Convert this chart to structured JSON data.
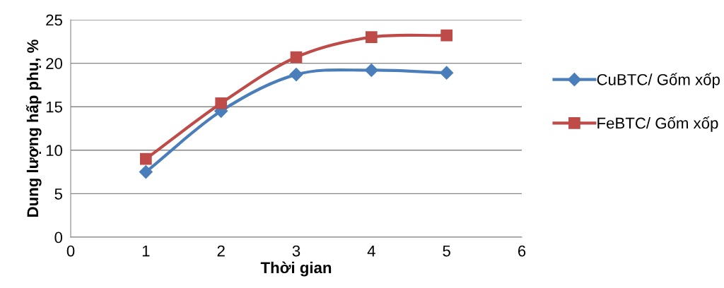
{
  "chart_data": {
    "type": "line",
    "xlabel": "Thời gian",
    "ylabel": "Dung lượng hấp phụ, %",
    "x": [
      1,
      2,
      3,
      4,
      5
    ],
    "series": [
      {
        "name": "CuBTC/ Gốm xốp",
        "color": "#4a7ebb",
        "marker": "diamond",
        "values": [
          7.5,
          14.5,
          18.7,
          19.2,
          18.9
        ]
      },
      {
        "name": "FeBTC/ Gốm xốp",
        "color": "#be4b48",
        "marker": "square",
        "values": [
          9.0,
          15.4,
          20.7,
          23.0,
          23.2
        ]
      }
    ],
    "xlim": [
      0,
      6
    ],
    "xticks": [
      0,
      1,
      2,
      3,
      4,
      5,
      6
    ],
    "ylim": [
      0,
      25
    ],
    "yticks": [
      0,
      5,
      10,
      15,
      20,
      25
    ],
    "grid": "y",
    "legend": "right"
  }
}
